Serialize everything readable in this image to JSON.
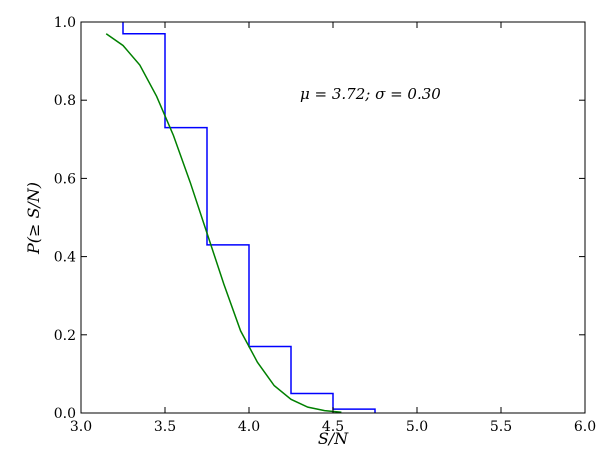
{
  "chart_data": {
    "type": "line",
    "xlabel": "S/N",
    "ylabel": "P(≥ S/N)",
    "xlim": [
      3.0,
      6.0
    ],
    "ylim": [
      0.0,
      1.0
    ],
    "x_ticks": [
      "3.0",
      "3.5",
      "4.0",
      "4.5",
      "5.0",
      "5.5",
      "6.0"
    ],
    "y_ticks": [
      "0.0",
      "0.2",
      "0.4",
      "0.6",
      "0.8",
      "1.0"
    ],
    "grid": false,
    "annotation": "μ = 3.72; σ = 0.30",
    "series": [
      {
        "style": "step",
        "color": "#0000ff",
        "x": [
          3.25,
          3.25,
          3.5,
          3.5,
          3.75,
          3.75,
          4.0,
          4.0,
          4.25,
          4.25,
          4.5,
          4.5,
          4.75,
          4.75
        ],
        "y": [
          1.0,
          0.97,
          0.97,
          0.73,
          0.73,
          0.43,
          0.43,
          0.17,
          0.17,
          0.05,
          0.05,
          0.01,
          0.01,
          0.0
        ]
      },
      {
        "style": "smooth",
        "color": "#008000",
        "x": [
          3.15,
          3.25,
          3.35,
          3.45,
          3.55,
          3.65,
          3.75,
          3.85,
          3.95,
          4.05,
          4.15,
          4.25,
          4.35,
          4.45,
          4.55
        ],
        "y": [
          0.97,
          0.94,
          0.89,
          0.81,
          0.71,
          0.59,
          0.46,
          0.33,
          0.21,
          0.13,
          0.07,
          0.035,
          0.015,
          0.006,
          0.002
        ]
      }
    ]
  }
}
